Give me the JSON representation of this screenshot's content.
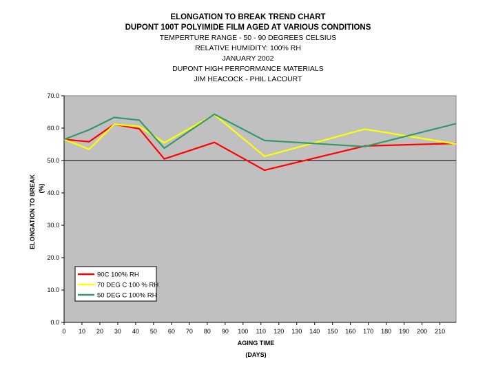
{
  "titles": {
    "line1": "ELONGATION TO BREAK TREND CHART",
    "line2": "DUPONT 100T POLYIMIDE FILM AGED AT VARIOUS CONDITIONS",
    "line3": "TEMPERTURE RANGE - 50 - 90 DEGREES CELSIUS",
    "line4": "RELATIVE HUMIDITY: 100% RH",
    "line5": "JANUARY 2002",
    "line6": "DUPONT HIGH PERFORMANCE MATERIALS",
    "line7": "JIM HEACOCK - PHIL LACOURT"
  },
  "colors": {
    "plot_bg": "#c0c0c0",
    "series_90": "#ff0000",
    "series_70": "#ffff00",
    "series_50": "#339966"
  },
  "chart_data": {
    "type": "line",
    "title": "ELONGATION TO BREAK TREND CHART",
    "xlabel_line1": "AGING TIME",
    "xlabel_line2": "(DAYS)",
    "ylabel_line1": "ELONGATION TO BREAK",
    "ylabel_line2": "(%)",
    "xlim": [
      0,
      219
    ],
    "ylim": [
      0,
      70
    ],
    "x_ticks": [
      "0",
      "10",
      "20",
      "30",
      "40",
      "50",
      "60",
      "70",
      "80",
      "90",
      "100",
      "110",
      "120",
      "130",
      "140",
      "150",
      "160",
      "170",
      "180",
      "190",
      "200",
      "210"
    ],
    "y_ticks": [
      "0.0",
      "10.0",
      "20.0",
      "30.0",
      "40.0",
      "50.0",
      "60.0",
      "70.0"
    ],
    "grid": "horizontal at 50.0 only",
    "legend_position": "bottom-left",
    "series": [
      {
        "name": "90C 100% RH",
        "x": [
          0,
          14,
          28,
          42,
          56,
          84,
          112,
          168,
          219
        ],
        "y": [
          56.5,
          55.8,
          61.2,
          59.8,
          50.5,
          55.6,
          47.0,
          54.5,
          55.3
        ]
      },
      {
        "name": "70 DEG C 100 % RH",
        "x": [
          0,
          14,
          28,
          42,
          56,
          84,
          112,
          168,
          219
        ],
        "y": [
          56.5,
          53.5,
          61.2,
          60.5,
          55.5,
          64.2,
          51.3,
          59.7,
          55.1
        ]
      },
      {
        "name": "50 DEG C 100% RH",
        "x": [
          0,
          14,
          28,
          42,
          56,
          84,
          112,
          168,
          219
        ],
        "y": [
          56.5,
          59.5,
          63.3,
          62.5,
          53.8,
          64.3,
          56.2,
          54.3,
          61.4
        ]
      }
    ]
  }
}
